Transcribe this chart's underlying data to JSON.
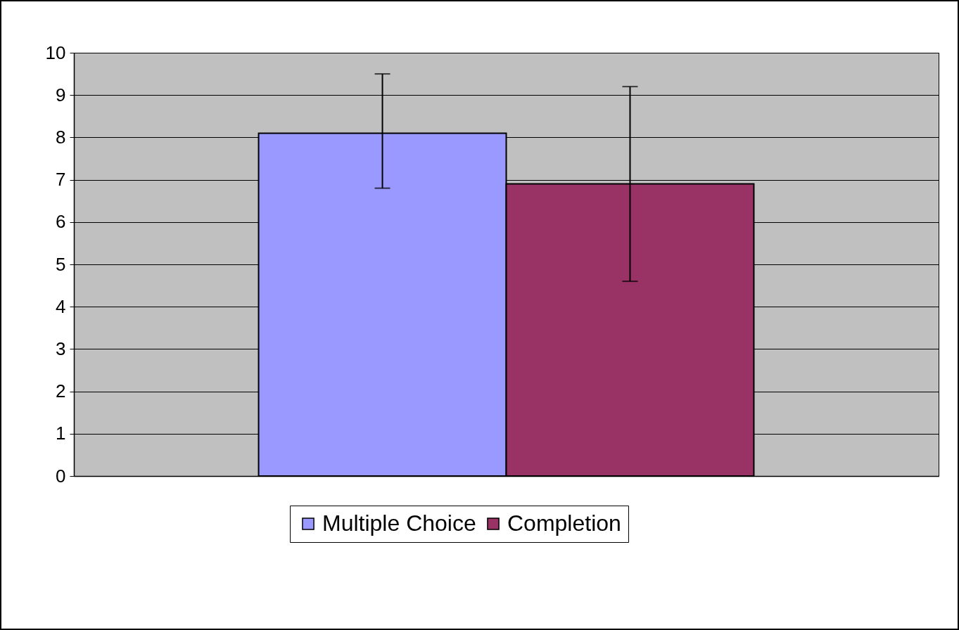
{
  "chart_data": {
    "type": "bar",
    "categories": [
      null
    ],
    "series": [
      {
        "name": "Multiple Choice",
        "color": "#9999ff",
        "values": [
          8.1
        ],
        "errors": [
          [
            6.8,
            9.5
          ]
        ]
      },
      {
        "name": "Completion",
        "color": "#993366",
        "values": [
          6.9
        ],
        "errors": [
          [
            4.6,
            9.2
          ]
        ]
      }
    ],
    "ylim": [
      0,
      10
    ],
    "yticks": [
      0,
      1,
      2,
      3,
      4,
      5,
      6,
      7,
      8,
      9,
      10
    ],
    "grid": "y",
    "legend": "bottom",
    "tick_labels": "y"
  }
}
